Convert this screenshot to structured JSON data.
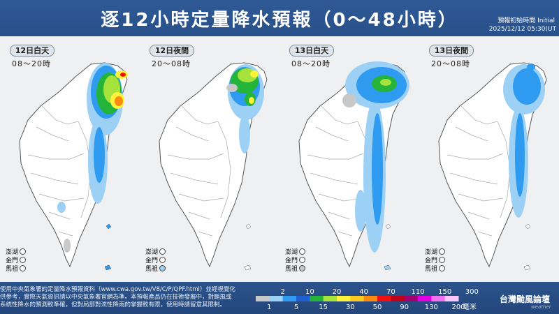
{
  "header": {
    "title": "逐12小時定量降水預報（0～48小時）",
    "init_label": "預報初始時間 Initial",
    "init_time": "2025/12/12  05:30(UT"
  },
  "panels": [
    {
      "day": "12日白天",
      "range": "08～20時"
    },
    {
      "day": "12日夜間",
      "range": "20～08時"
    },
    {
      "day": "13日白天",
      "range": "08～20時"
    },
    {
      "day": "13日夜間",
      "range": "20～08時"
    }
  ],
  "islands": [
    "澎湖",
    "金門",
    "馬祖"
  ],
  "legend": {
    "top_values": [
      "2",
      "10",
      "20",
      "40",
      "70",
      "110",
      "150",
      "300"
    ],
    "bottom_values": [
      "1",
      "5",
      "15",
      "30",
      "50",
      "90",
      "130",
      "200"
    ],
    "unit": "毫米",
    "colors": [
      "#c8c8c8",
      "#9cd0f5",
      "#2f9bf0",
      "#1f5fd0",
      "#24b43a",
      "#a6e23c",
      "#fff23a",
      "#ffc820",
      "#ff8a10",
      "#f01010",
      "#c00018",
      "#a00070",
      "#e000e0",
      "#f070f0",
      "#f8c6f8"
    ]
  },
  "footer": {
    "disclaimer": [
      "使用中央氣象署的定量降水預報資料（www.cwa.gov.tw/V8/C/P/QPF.html）並經視覺化",
      "供參考，實際天氣資訊請以中央氣象署官網為準。本預報產品仍在技術發展中，對颱風或",
      "系統性降水的預測較準確，但對局部對流性降雨的掌握較有限，使用時請留意其限制。"
    ],
    "brand": "台灣颱風論壇",
    "brand_sub": "weather"
  }
}
